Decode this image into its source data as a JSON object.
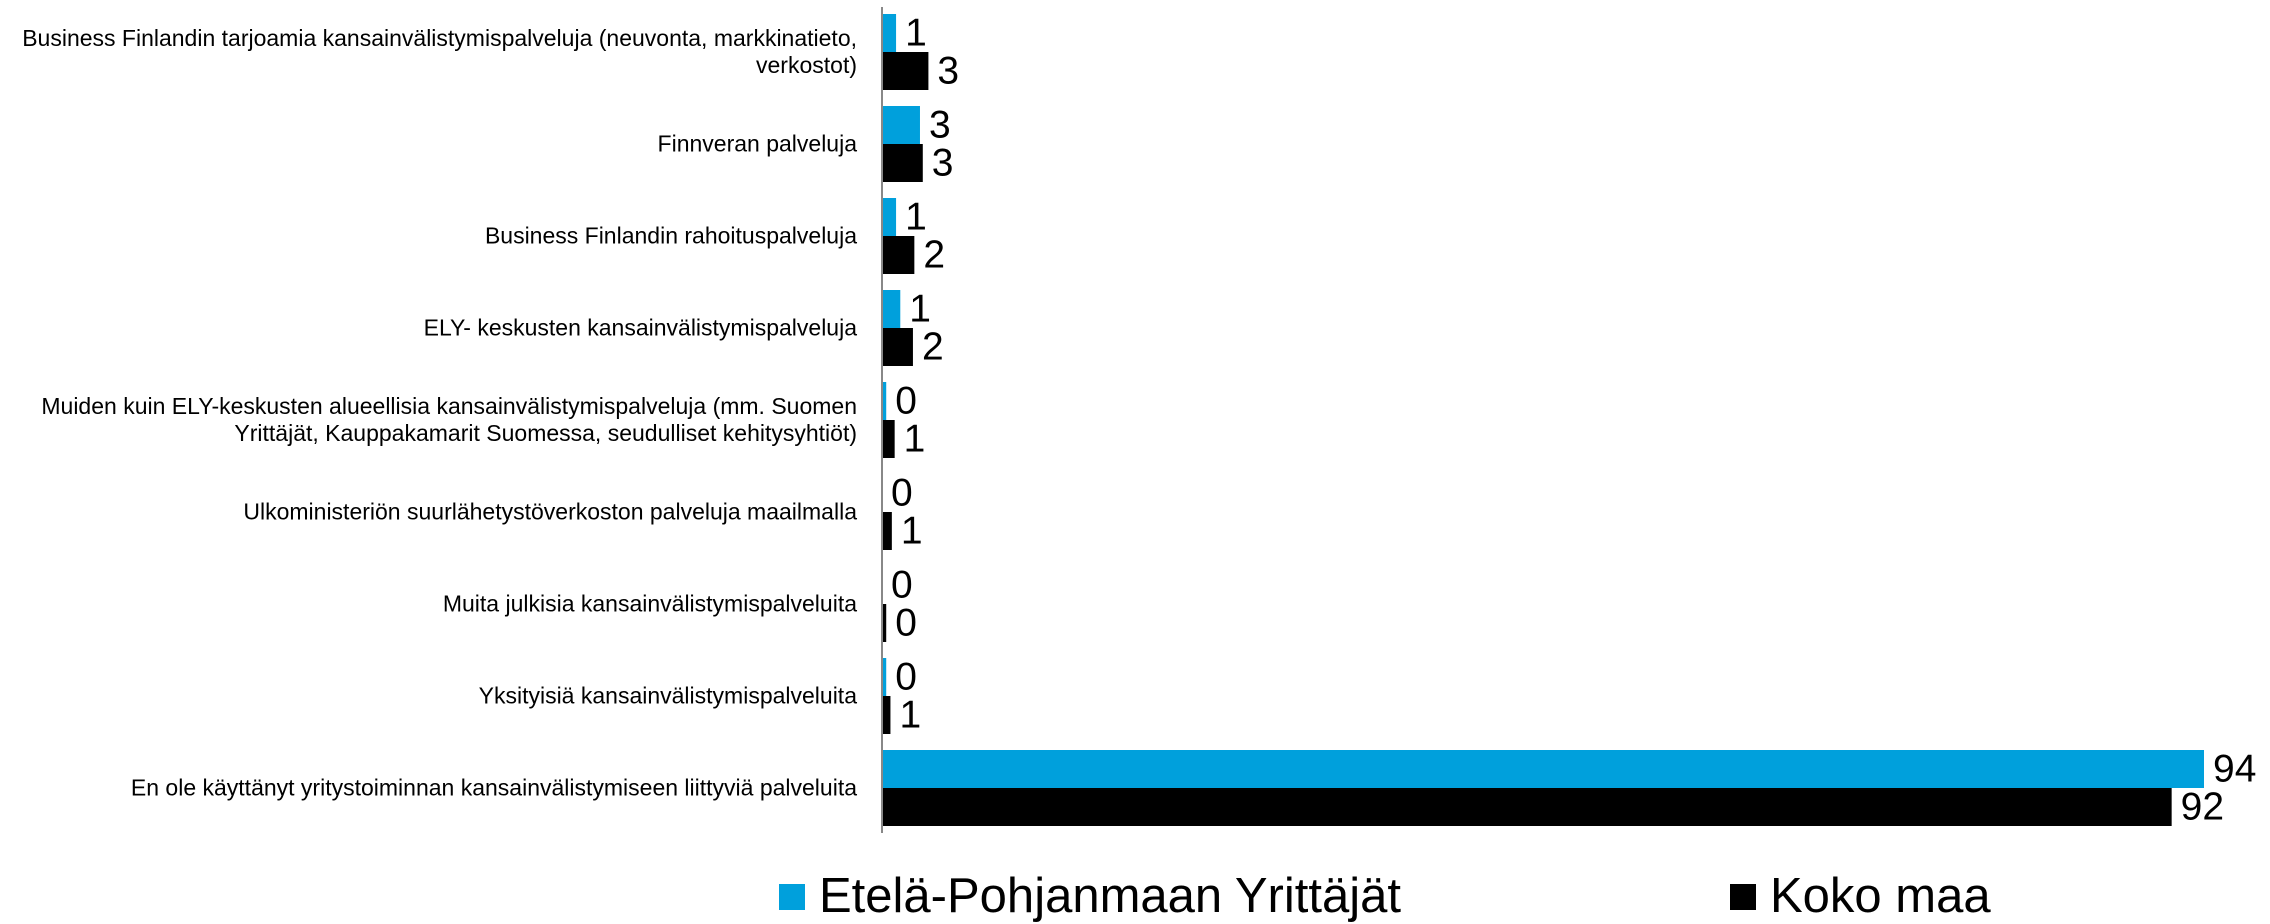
{
  "chart_data": {
    "type": "bar",
    "orientation": "horizontal",
    "categories": [
      "Business Finlandin tarjoamia kansainvälistymispalveluja (neuvonta, markkinatieto, verkostot)",
      "Finnveran palveluja",
      "Business Finlandin rahoituspalveluja",
      "ELY- keskusten kansainvälistymispalveluja",
      "Muiden kuin ELY-keskusten alueellisia kansainvälistymispalveluja (mm. Suomen Yrittäjät, Kauppakamarit Suomessa, seudulliset kehitysyhtiöt)",
      "Ulkoministeriön suurlähetystöverkoston palveluja maailmalla",
      "Muita julkisia kansainvälistymispalveluita",
      "Yksityisiä kansainvälistymispalveluita",
      "En ole käyttänyt yritystoiminnan kansainvälistymiseen liittyviä palveluita"
    ],
    "series": [
      {
        "name": "Etelä-Pohjanmaan Yrittäjät",
        "color": "#00a0dc",
        "values": [
          1.0,
          2.7,
          1.0,
          1.3,
          0.3,
          0,
          0,
          0.3,
          94
        ],
        "value_labels": [
          "1",
          "3",
          "1",
          "1",
          "0",
          "0",
          "0",
          "0",
          "94"
        ]
      },
      {
        "name": "Koko maa",
        "color": "#000000",
        "values": [
          3.3,
          2.9,
          2.3,
          2.2,
          0.9,
          0.7,
          0.3,
          0.6,
          91.7
        ],
        "value_labels": [
          "3",
          "3",
          "2",
          "2",
          "1",
          "1",
          "0",
          "1",
          "92"
        ]
      }
    ],
    "legend": "bottom"
  }
}
